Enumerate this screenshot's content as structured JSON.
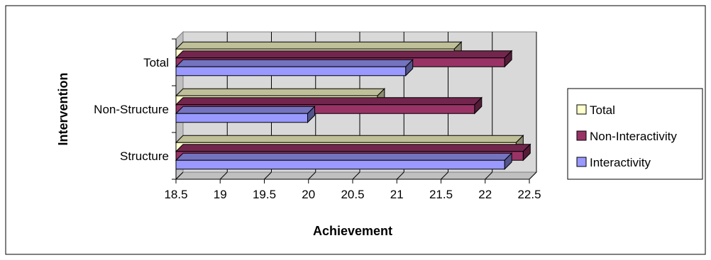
{
  "chart_data": {
    "type": "bar",
    "orientation": "horizontal",
    "style": "3d",
    "categories": [
      "Structure",
      "Non-Structure",
      "Total"
    ],
    "series": [
      {
        "name": "Total",
        "values": [
          22.35,
          20.78,
          21.65
        ],
        "color": "#ffffcc"
      },
      {
        "name": "Non-Interactivity",
        "values": [
          22.43,
          21.88,
          22.22
        ],
        "color": "#993366"
      },
      {
        "name": "Interactivity",
        "values": [
          22.22,
          19.99,
          21.1
        ],
        "color": "#9999ff"
      }
    ],
    "xlabel": "Achievement",
    "ylabel": "Intervention",
    "xlim": [
      18.5,
      22.5
    ],
    "x_ticks": [
      "18.5",
      "19",
      "19.5",
      "20",
      "20.5",
      "21",
      "21.5",
      "22",
      "22.5"
    ],
    "grid": true,
    "legend_position": "right",
    "wall_color": "#d9d9d9"
  }
}
